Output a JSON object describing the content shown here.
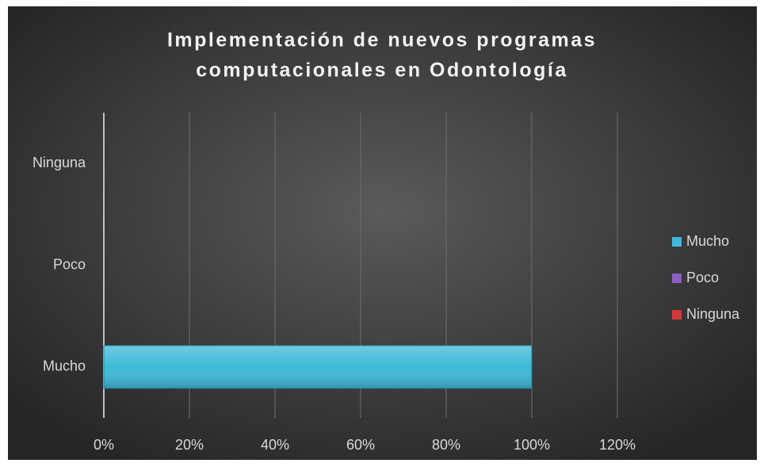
{
  "chart_data": {
    "type": "bar",
    "orientation": "horizontal",
    "stacked": true,
    "title": [
      "Implementación de nuevos programas",
      "computacionales en Odontología"
    ],
    "categories": [
      "Mucho",
      "Poco",
      "Ninguna"
    ],
    "series": [
      {
        "name": "Mucho",
        "color": "#3fb9d8",
        "values": [
          100,
          0,
          0
        ]
      },
      {
        "name": "Poco",
        "color": "#8a5fc0",
        "values": [
          0,
          0,
          0
        ]
      },
      {
        "name": "Ninguna",
        "color": "#d03a3a",
        "values": [
          0,
          0,
          0
        ]
      }
    ],
    "xlim": [
      0,
      120
    ],
    "xticks": [
      {
        "value": 0,
        "label": "0%"
      },
      {
        "value": 20,
        "label": "20%"
      },
      {
        "value": 40,
        "label": "40%"
      },
      {
        "value": 60,
        "label": "60%"
      },
      {
        "value": 80,
        "label": "80%"
      },
      {
        "value": 100,
        "label": "100%"
      },
      {
        "value": 120,
        "label": "120%"
      }
    ],
    "grid": true,
    "legend": "right"
  }
}
